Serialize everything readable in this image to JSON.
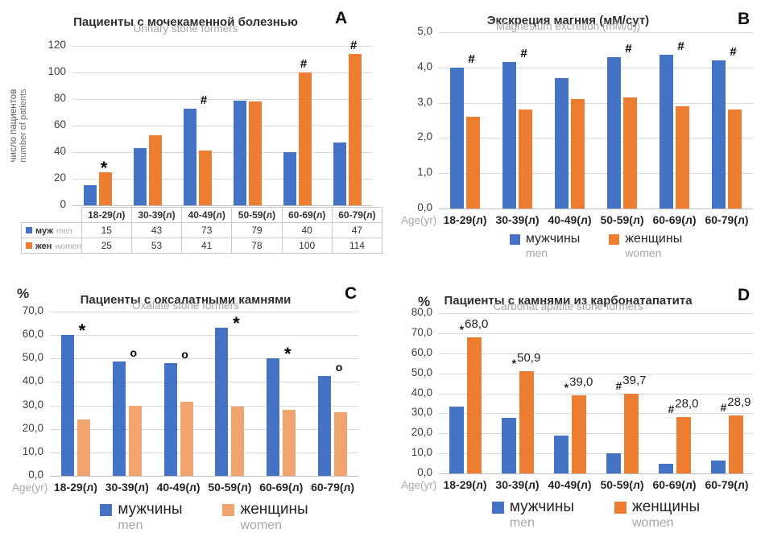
{
  "colors": {
    "men_blue": "#4472C4",
    "women_orange": "#ED7D31",
    "women_light_orange": "#F2A46F",
    "gridline": "#D9D9D9",
    "axis_line": "#BFBFBF",
    "subtitle_gray": "#A6A6A6"
  },
  "chart_data": [
    {
      "panel": "A",
      "type": "bar",
      "title": "Пациенты с мочекаменной болезнью",
      "subtitle": "Urinary stone formers",
      "ylabel_ru": "число пациентов",
      "ylabel_en": "number of patients",
      "ylim": [
        0,
        120
      ],
      "ytick_step": 20,
      "tick_decimals": 0,
      "grid": true,
      "legend_position": "table-left",
      "categories": [
        "18-29(л)",
        "30-39(л)",
        "40-49(л)",
        "50-59(л)",
        "60-69(л)",
        "60-79(л)"
      ],
      "series": [
        {
          "key": "men",
          "label_ru": "муж",
          "label_en": "men",
          "color": "#4472C4",
          "values": [
            15,
            43,
            73,
            79,
            40,
            47
          ]
        },
        {
          "key": "women",
          "label_ru": "жен",
          "label_en": "women",
          "color": "#ED7D31",
          "values": [
            25,
            53,
            41,
            78,
            100,
            114
          ]
        }
      ],
      "annotations": [
        {
          "category_index": 0,
          "marker": "*"
        },
        {
          "category_index": 2,
          "marker": "#"
        },
        {
          "category_index": 4,
          "marker": "#"
        },
        {
          "category_index": 5,
          "marker": "#"
        }
      ],
      "show_table": true
    },
    {
      "panel": "B",
      "type": "bar",
      "title": "Экскреция магния (мМ/сут)",
      "subtitle": "Magnesium excretion (mM/d))",
      "age_label": "Age(yr)",
      "ylim": [
        0,
        5
      ],
      "ytick_step": 1,
      "tick_decimals": 1,
      "grid": true,
      "legend_position": "bottom",
      "categories": [
        "18-29(л)",
        "30-39(л)",
        "40-49(л)",
        "50-59(л)",
        "60-69(л)",
        "60-79(л)"
      ],
      "series": [
        {
          "key": "men",
          "label_ru": "мужчины",
          "label_en": "men",
          "color": "#4472C4",
          "values": [
            4.0,
            4.15,
            3.7,
            4.3,
            4.35,
            4.2
          ]
        },
        {
          "key": "women",
          "label_ru": "женщины",
          "label_en": "women",
          "color": "#ED7D31",
          "values": [
            2.6,
            2.8,
            3.1,
            3.15,
            2.9,
            2.8
          ]
        }
      ],
      "annotations": [
        {
          "category_index": 0,
          "marker": "#"
        },
        {
          "category_index": 1,
          "marker": "#"
        },
        {
          "category_index": 3,
          "marker": "#"
        },
        {
          "category_index": 4,
          "marker": "#"
        },
        {
          "category_index": 5,
          "marker": "#"
        }
      ]
    },
    {
      "panel": "C",
      "type": "bar",
      "title": "Пациенты с оксалатными камнями",
      "subtitle": "Oxalate stone formers",
      "y_unit": "%",
      "age_label": "Age(yr)",
      "ylim": [
        0,
        70
      ],
      "ytick_step": 10,
      "tick_decimals": 1,
      "grid": true,
      "legend_position": "bottom",
      "categories": [
        "18-29(л)",
        "30-39(л)",
        "40-49(л)",
        "50-59(л)",
        "60-69(л)",
        "60-79(л)"
      ],
      "series": [
        {
          "key": "men",
          "label_ru": "мужчины",
          "label_en": "men",
          "color": "#4472C4",
          "values": [
            60,
            48.8,
            48,
            63,
            50,
            42.5
          ]
        },
        {
          "key": "women",
          "label_ru": "женщины",
          "label_en": "women",
          "color": "#F2A46F",
          "values": [
            24,
            30,
            31.5,
            29.5,
            28,
            27
          ]
        }
      ],
      "annotations": [
        {
          "category_index": 0,
          "marker": "*"
        },
        {
          "category_index": 1,
          "marker": "o"
        },
        {
          "category_index": 2,
          "marker": "o"
        },
        {
          "category_index": 3,
          "marker": "*"
        },
        {
          "category_index": 4,
          "marker": "*"
        },
        {
          "category_index": 5,
          "marker": "o"
        }
      ]
    },
    {
      "panel": "D",
      "type": "bar",
      "title": "Пациенты с камнями из карбонатапатита",
      "subtitle": "Carbonat apatite stone formers",
      "y_unit": "%",
      "age_label": "Age(yr)",
      "ylim": [
        0,
        80
      ],
      "ytick_step": 10,
      "tick_decimals": 1,
      "grid": true,
      "legend_position": "bottom",
      "categories": [
        "18-29(л)",
        "30-39(л)",
        "40-49(л)",
        "50-59(л)",
        "60-69(л)",
        "60-79(л)"
      ],
      "series": [
        {
          "key": "men",
          "label_ru": "мужчины",
          "label_en": "men",
          "color": "#4472C4",
          "values": [
            33.3,
            27.8,
            19.0,
            10.2,
            5.0,
            6.3
          ]
        },
        {
          "key": "women",
          "label_ru": "женщины",
          "label_en": "women",
          "color": "#ED7D31",
          "values": [
            68.0,
            50.9,
            39.0,
            39.7,
            28.0,
            28.9
          ]
        }
      ],
      "bar_labels": [
        {
          "category_index": 0,
          "series": "women",
          "marker": "*",
          "text": "68,0"
        },
        {
          "category_index": 1,
          "series": "women",
          "marker": "*",
          "text": "50,9"
        },
        {
          "category_index": 2,
          "series": "women",
          "marker": "*",
          "text": "39,0"
        },
        {
          "category_index": 3,
          "series": "women",
          "marker": "#",
          "text": "39,7"
        },
        {
          "category_index": 4,
          "series": "women",
          "marker": "#",
          "text": "28,0"
        },
        {
          "category_index": 5,
          "series": "women",
          "marker": "#",
          "text": "28,9"
        }
      ]
    }
  ]
}
